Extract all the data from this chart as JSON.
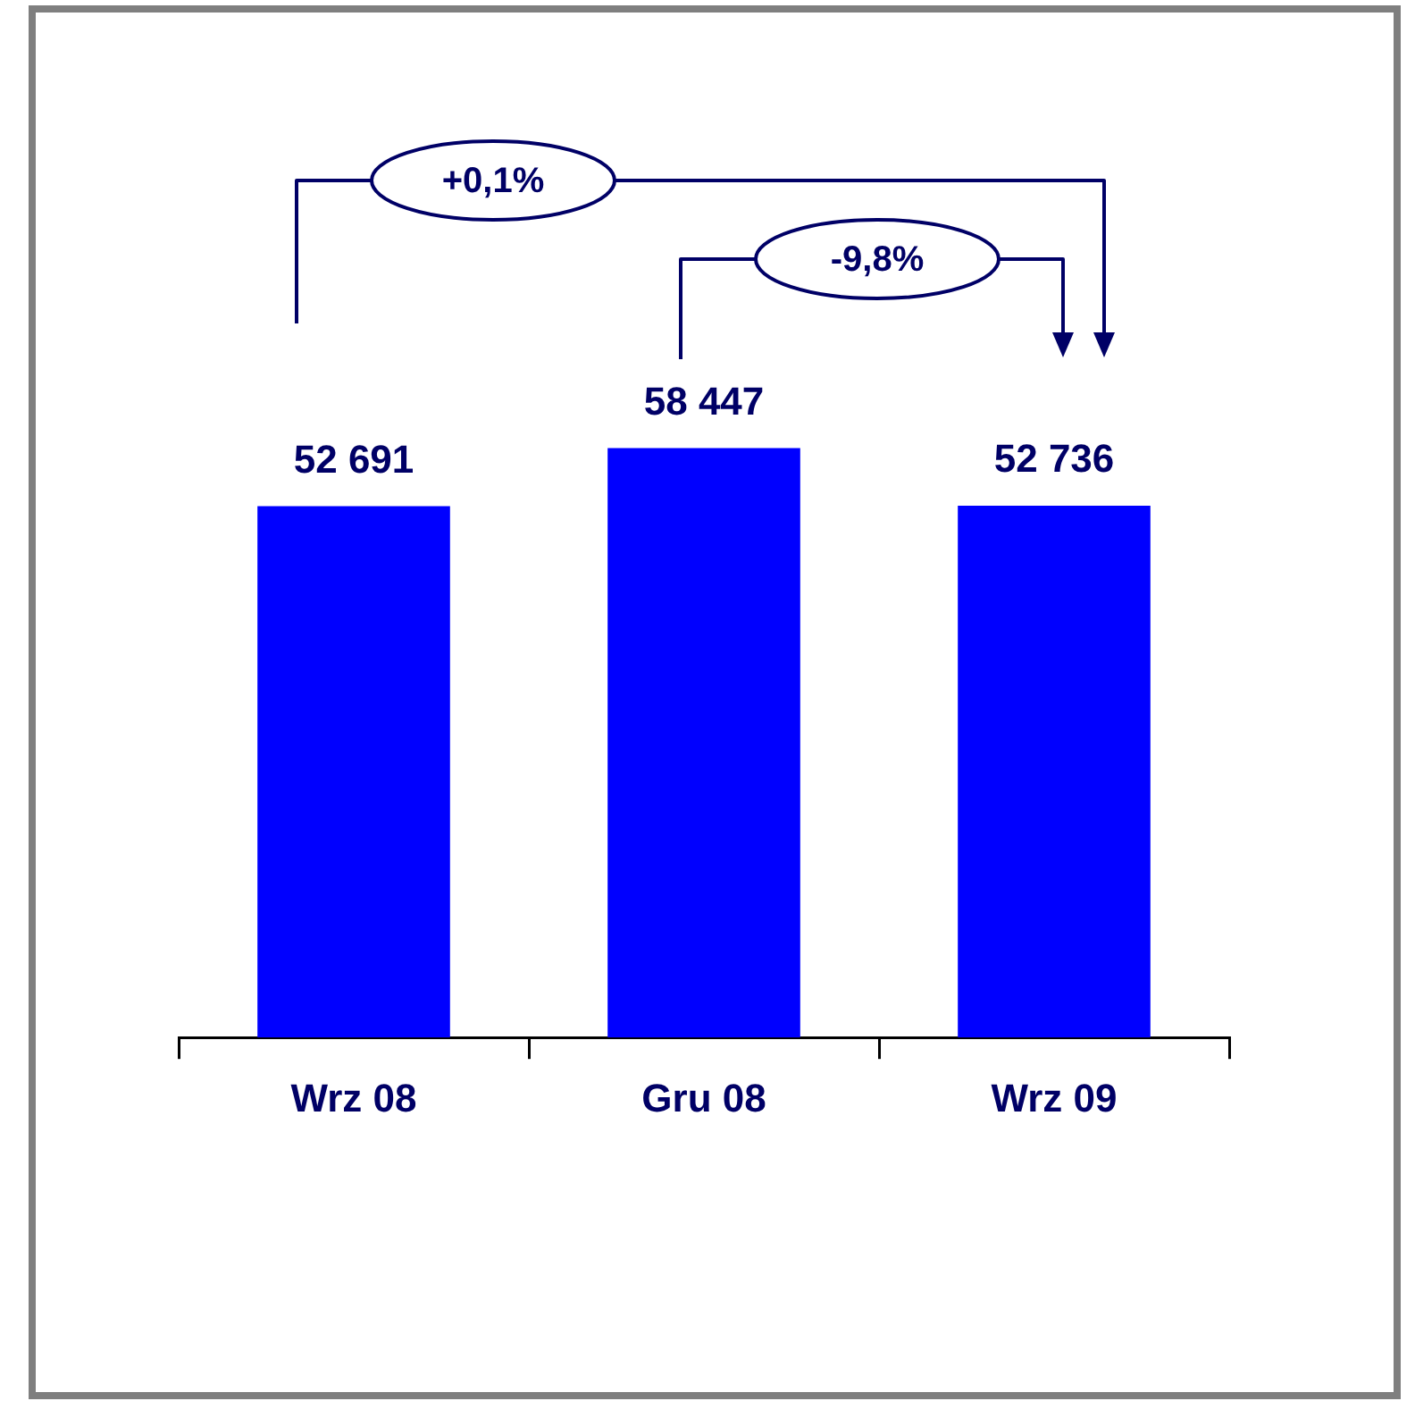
{
  "chart_data": {
    "type": "bar",
    "categories": [
      "Wrz 08",
      "Gru 08",
      "Wrz 09"
    ],
    "values": [
      52691,
      58447,
      52736
    ],
    "value_labels": [
      "52 691",
      "58 447",
      "52 736"
    ],
    "color": "#0000ff",
    "grid": false,
    "legend": false,
    "annotations": [
      "+0,1%",
      "-9,8%"
    ]
  }
}
